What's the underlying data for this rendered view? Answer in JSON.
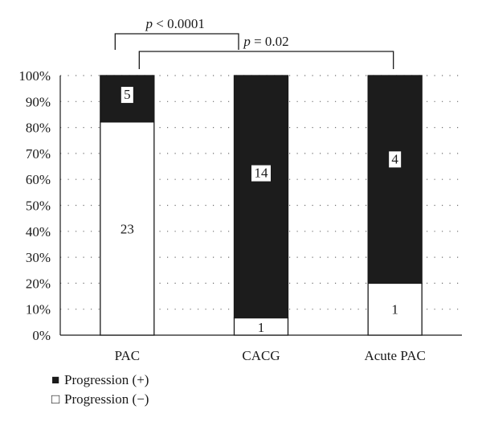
{
  "chart_data": {
    "type": "bar",
    "stacked": true,
    "normalized_percent": true,
    "categories": [
      "PAC",
      "CACG",
      "Acute PAC"
    ],
    "series": [
      {
        "name": "Progression (−)",
        "values": [
          23,
          1,
          1
        ],
        "color": "#ffffff"
      },
      {
        "name": "Progression (+)",
        "values": [
          5,
          14,
          4
        ],
        "color": "#1c1c1c"
      }
    ],
    "ylim": [
      0,
      100
    ],
    "yticks": [
      "0%",
      "10%",
      "20%",
      "30%",
      "40%",
      "50%",
      "60%",
      "70%",
      "80%",
      "90%",
      "100%"
    ],
    "grid": "dotted horizontal",
    "legend": [
      {
        "symbol": "■",
        "label": "Progression (+)"
      },
      {
        "symbol": "□",
        "label": "Progression (−)"
      }
    ],
    "legend_position": "bottom-left",
    "annotations": [
      {
        "text_italic": "p",
        "text_rest": " < 0.0001",
        "from": "PAC",
        "to": "CACG"
      },
      {
        "text_italic": "p",
        "text_rest": " = 0.02",
        "from": "PAC",
        "to": "Acute PAC"
      }
    ]
  }
}
